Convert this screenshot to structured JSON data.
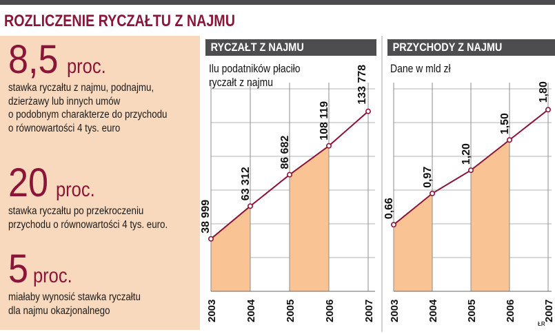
{
  "title": "ROZLICZENIE RYCZAŁTU Z NAJMU",
  "stats": [
    {
      "value": "8,5",
      "unit": "proc.",
      "lines": [
        "stawka ryczałtu z najmu, podnajmu,",
        "dzierżawy lub innych umów",
        "o podobnym charakterze do przychodu",
        "o równowartości 4 tys. euro"
      ]
    },
    {
      "value": "20",
      "unit": "proc.",
      "lines": [
        "stawka ryczałtu po przekroczeniu",
        "przychodu o równowartości 4 tys. euro."
      ]
    },
    {
      "value": "5",
      "unit": "proc.",
      "lines": [
        "miałaby wynosić stawka ryczałtu",
        "dla najmu okazjonalnego"
      ]
    }
  ],
  "chart_data": [
    {
      "type": "area",
      "header": "RYCZAŁT Z NAJMU",
      "subtitle_lines": [
        "Ilu podatników płaciło",
        "ryczałt z najmu"
      ],
      "x": [
        "2003",
        "2004",
        "2005",
        "2006",
        "2007"
      ],
      "values": [
        38999,
        63312,
        86682,
        108119,
        133778
      ],
      "value_labels": [
        "38 999",
        "63 312",
        "86 682",
        "108 119",
        "133 778"
      ],
      "ylim": [
        0,
        150000
      ]
    },
    {
      "type": "area",
      "header": "PRZYCHODY Z NAJMU",
      "subtitle_lines": [
        "Dane w mld zł"
      ],
      "x": [
        "2003",
        "2004",
        "2005",
        "2006",
        "2007"
      ],
      "values": [
        0.66,
        0.97,
        1.2,
        1.5,
        1.8
      ],
      "value_labels": [
        "0,66",
        "0,97",
        "1,20",
        "1,50",
        "1,80"
      ],
      "ylim": [
        0,
        2.0
      ]
    }
  ],
  "credit": "ŁR",
  "colors": {
    "accent": "#8a1538",
    "fill": "#f9c394",
    "panel": "#f9d9bd",
    "header": "#4d4d4f",
    "grid": "#b3b3b3"
  }
}
